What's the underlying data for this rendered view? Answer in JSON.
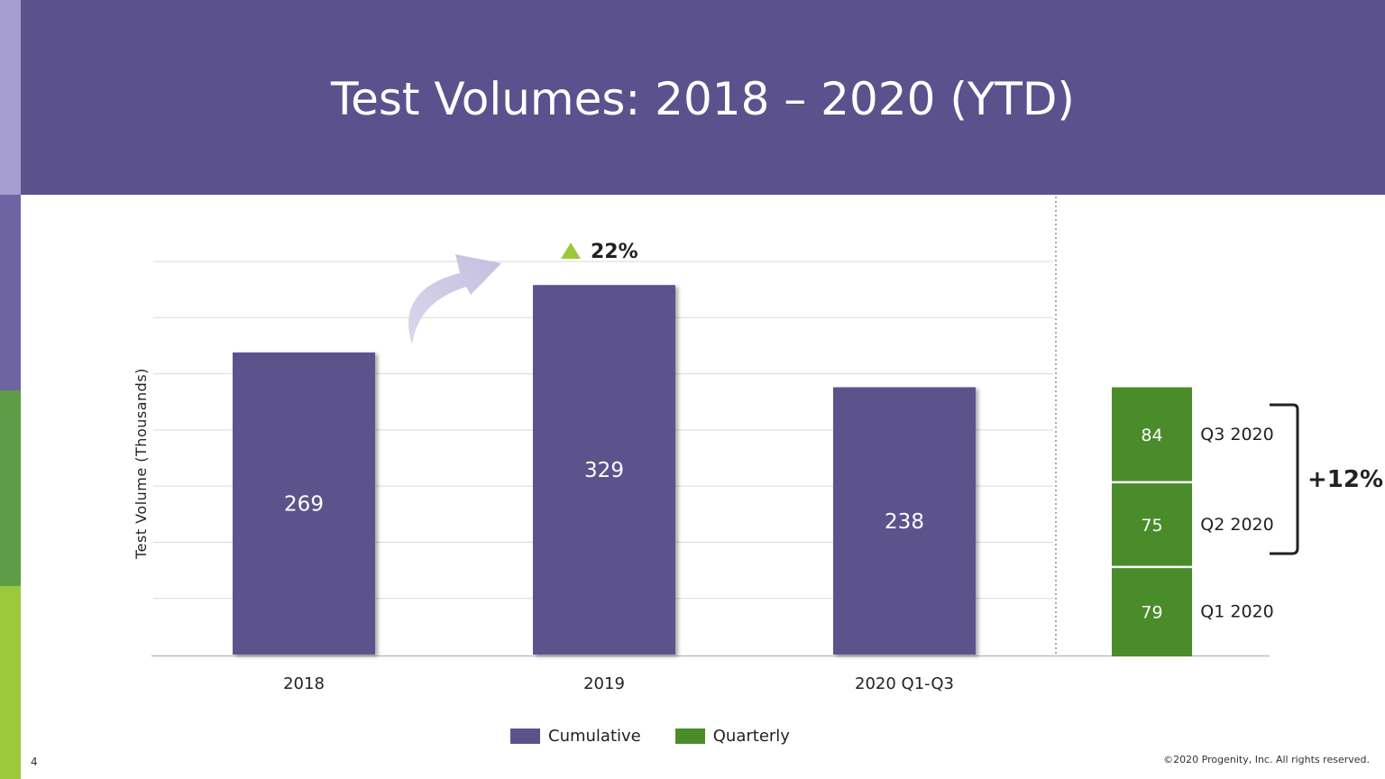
{
  "slide": {
    "title": "Test Volumes: 2018 – 2020 (YTD)",
    "page_number": "4",
    "footer": "©2020 Progenity, Inc. All rights reserved."
  },
  "colors": {
    "cumulative": "#5b528d",
    "quarterly": "#4a8c2a",
    "up_arrow": "#9cc93c"
  },
  "chart_data": [
    {
      "type": "bar",
      "ylabel": "Test Volume (Thousands)",
      "categories": [
        "2018",
        "2019",
        "2020 Q1-Q3"
      ],
      "series": [
        {
          "name": "Cumulative",
          "values": [
            269,
            329,
            238
          ]
        }
      ],
      "ylim": [
        0,
        350
      ],
      "grid": true,
      "annotations": [
        {
          "text": "22%",
          "icon": "triangle-up-icon",
          "between": [
            "2018",
            "2019"
          ]
        }
      ]
    },
    {
      "type": "bar",
      "stacked": true,
      "series": [
        {
          "name": "Quarterly",
          "segments": [
            {
              "label": "Q1 2020",
              "value": 79
            },
            {
              "label": "Q2 2020",
              "value": 75
            },
            {
              "label": "Q3 2020",
              "value": 84
            }
          ]
        }
      ],
      "annotations": [
        {
          "text": "+12%",
          "spans": [
            "Q2 2020",
            "Q3 2020"
          ],
          "icon": "bracket-icon"
        }
      ]
    }
  ],
  "legend": [
    {
      "label": "Cumulative",
      "color": "#5b528d"
    },
    {
      "label": "Quarterly",
      "color": "#4a8c2a"
    }
  ]
}
